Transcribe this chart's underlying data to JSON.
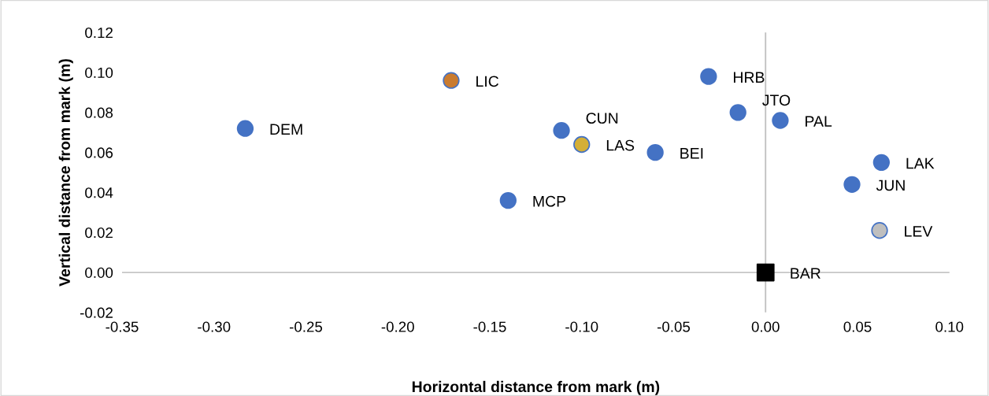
{
  "chart_data": {
    "type": "scatter",
    "xlabel": "Horizontal distance from mark (m)",
    "ylabel": "Vertical distance from mark (m)",
    "xlim": [
      -0.35,
      0.1
    ],
    "ylim": [
      -0.02,
      0.12
    ],
    "xticks": [
      {
        "value": -0.35,
        "label": "-0.35"
      },
      {
        "value": -0.3,
        "label": "-0.30"
      },
      {
        "value": -0.25,
        "label": "-0.25"
      },
      {
        "value": -0.2,
        "label": "-0.20"
      },
      {
        "value": -0.15,
        "label": "-0.15"
      },
      {
        "value": -0.1,
        "label": "-0.10"
      },
      {
        "value": -0.05,
        "label": "-0.05"
      },
      {
        "value": 0.0,
        "label": "0.00"
      },
      {
        "value": 0.05,
        "label": "0.05"
      },
      {
        "value": 0.1,
        "label": "0.10"
      }
    ],
    "yticks": [
      {
        "value": -0.02,
        "label": "-0.02"
      },
      {
        "value": 0.0,
        "label": "0.00"
      },
      {
        "value": 0.02,
        "label": "0.02"
      },
      {
        "value": 0.04,
        "label": "0.04"
      },
      {
        "value": 0.06,
        "label": "0.06"
      },
      {
        "value": 0.08,
        "label": "0.08"
      },
      {
        "value": 0.1,
        "label": "0.10"
      },
      {
        "value": 0.12,
        "label": "0.12"
      }
    ],
    "grid": false,
    "legend": false,
    "ref_lines": [
      {
        "axis": "x",
        "value": 0,
        "color": "#bfbfbf"
      },
      {
        "axis": "y",
        "value": 0,
        "color": "#c6c6c6"
      }
    ],
    "series": [
      {
        "marker": "circle",
        "x": [
          -0.283,
          -0.171,
          -0.111,
          -0.1,
          -0.14,
          -0.06,
          -0.031,
          -0.015,
          0.008,
          0.063,
          0.047,
          0.062
        ],
        "values": [
          0.072,
          0.096,
          0.071,
          0.064,
          0.036,
          0.06,
          0.098,
          0.08,
          0.076,
          0.055,
          0.044,
          0.021
        ],
        "colors": [
          "#4472c4",
          "#c97b30",
          "#4472c4",
          "#d4af37",
          "#4472c4",
          "#4472c4",
          "#4472c4",
          "#4472c4",
          "#4472c4",
          "#4472c4",
          "#4472c4",
          "#bfbfbf"
        ]
      },
      {
        "marker": "square",
        "color": "#000000",
        "x": [
          0.0
        ],
        "values": [
          0.0
        ]
      }
    ],
    "annotations": [
      {
        "text": "DEM",
        "x": -0.283,
        "y": 0.072
      },
      {
        "text": "LIC",
        "x": -0.171,
        "y": 0.096
      },
      {
        "text": "CUN",
        "x": -0.111,
        "y": 0.071
      },
      {
        "text": "LAS",
        "x": -0.1,
        "y": 0.064
      },
      {
        "text": "MCP",
        "x": -0.14,
        "y": 0.036
      },
      {
        "text": "BEI",
        "x": -0.06,
        "y": 0.06
      },
      {
        "text": "HRB",
        "x": -0.031,
        "y": 0.098
      },
      {
        "text": "JTO",
        "x": -0.015,
        "y": 0.08
      },
      {
        "text": "PAL",
        "x": 0.008,
        "y": 0.076
      },
      {
        "text": "LAK",
        "x": 0.063,
        "y": 0.055
      },
      {
        "text": "JUN",
        "x": 0.047,
        "y": 0.044
      },
      {
        "text": "LEV",
        "x": 0.062,
        "y": 0.021
      },
      {
        "text": "BAR",
        "x": 0.0,
        "y": 0.0
      }
    ]
  }
}
